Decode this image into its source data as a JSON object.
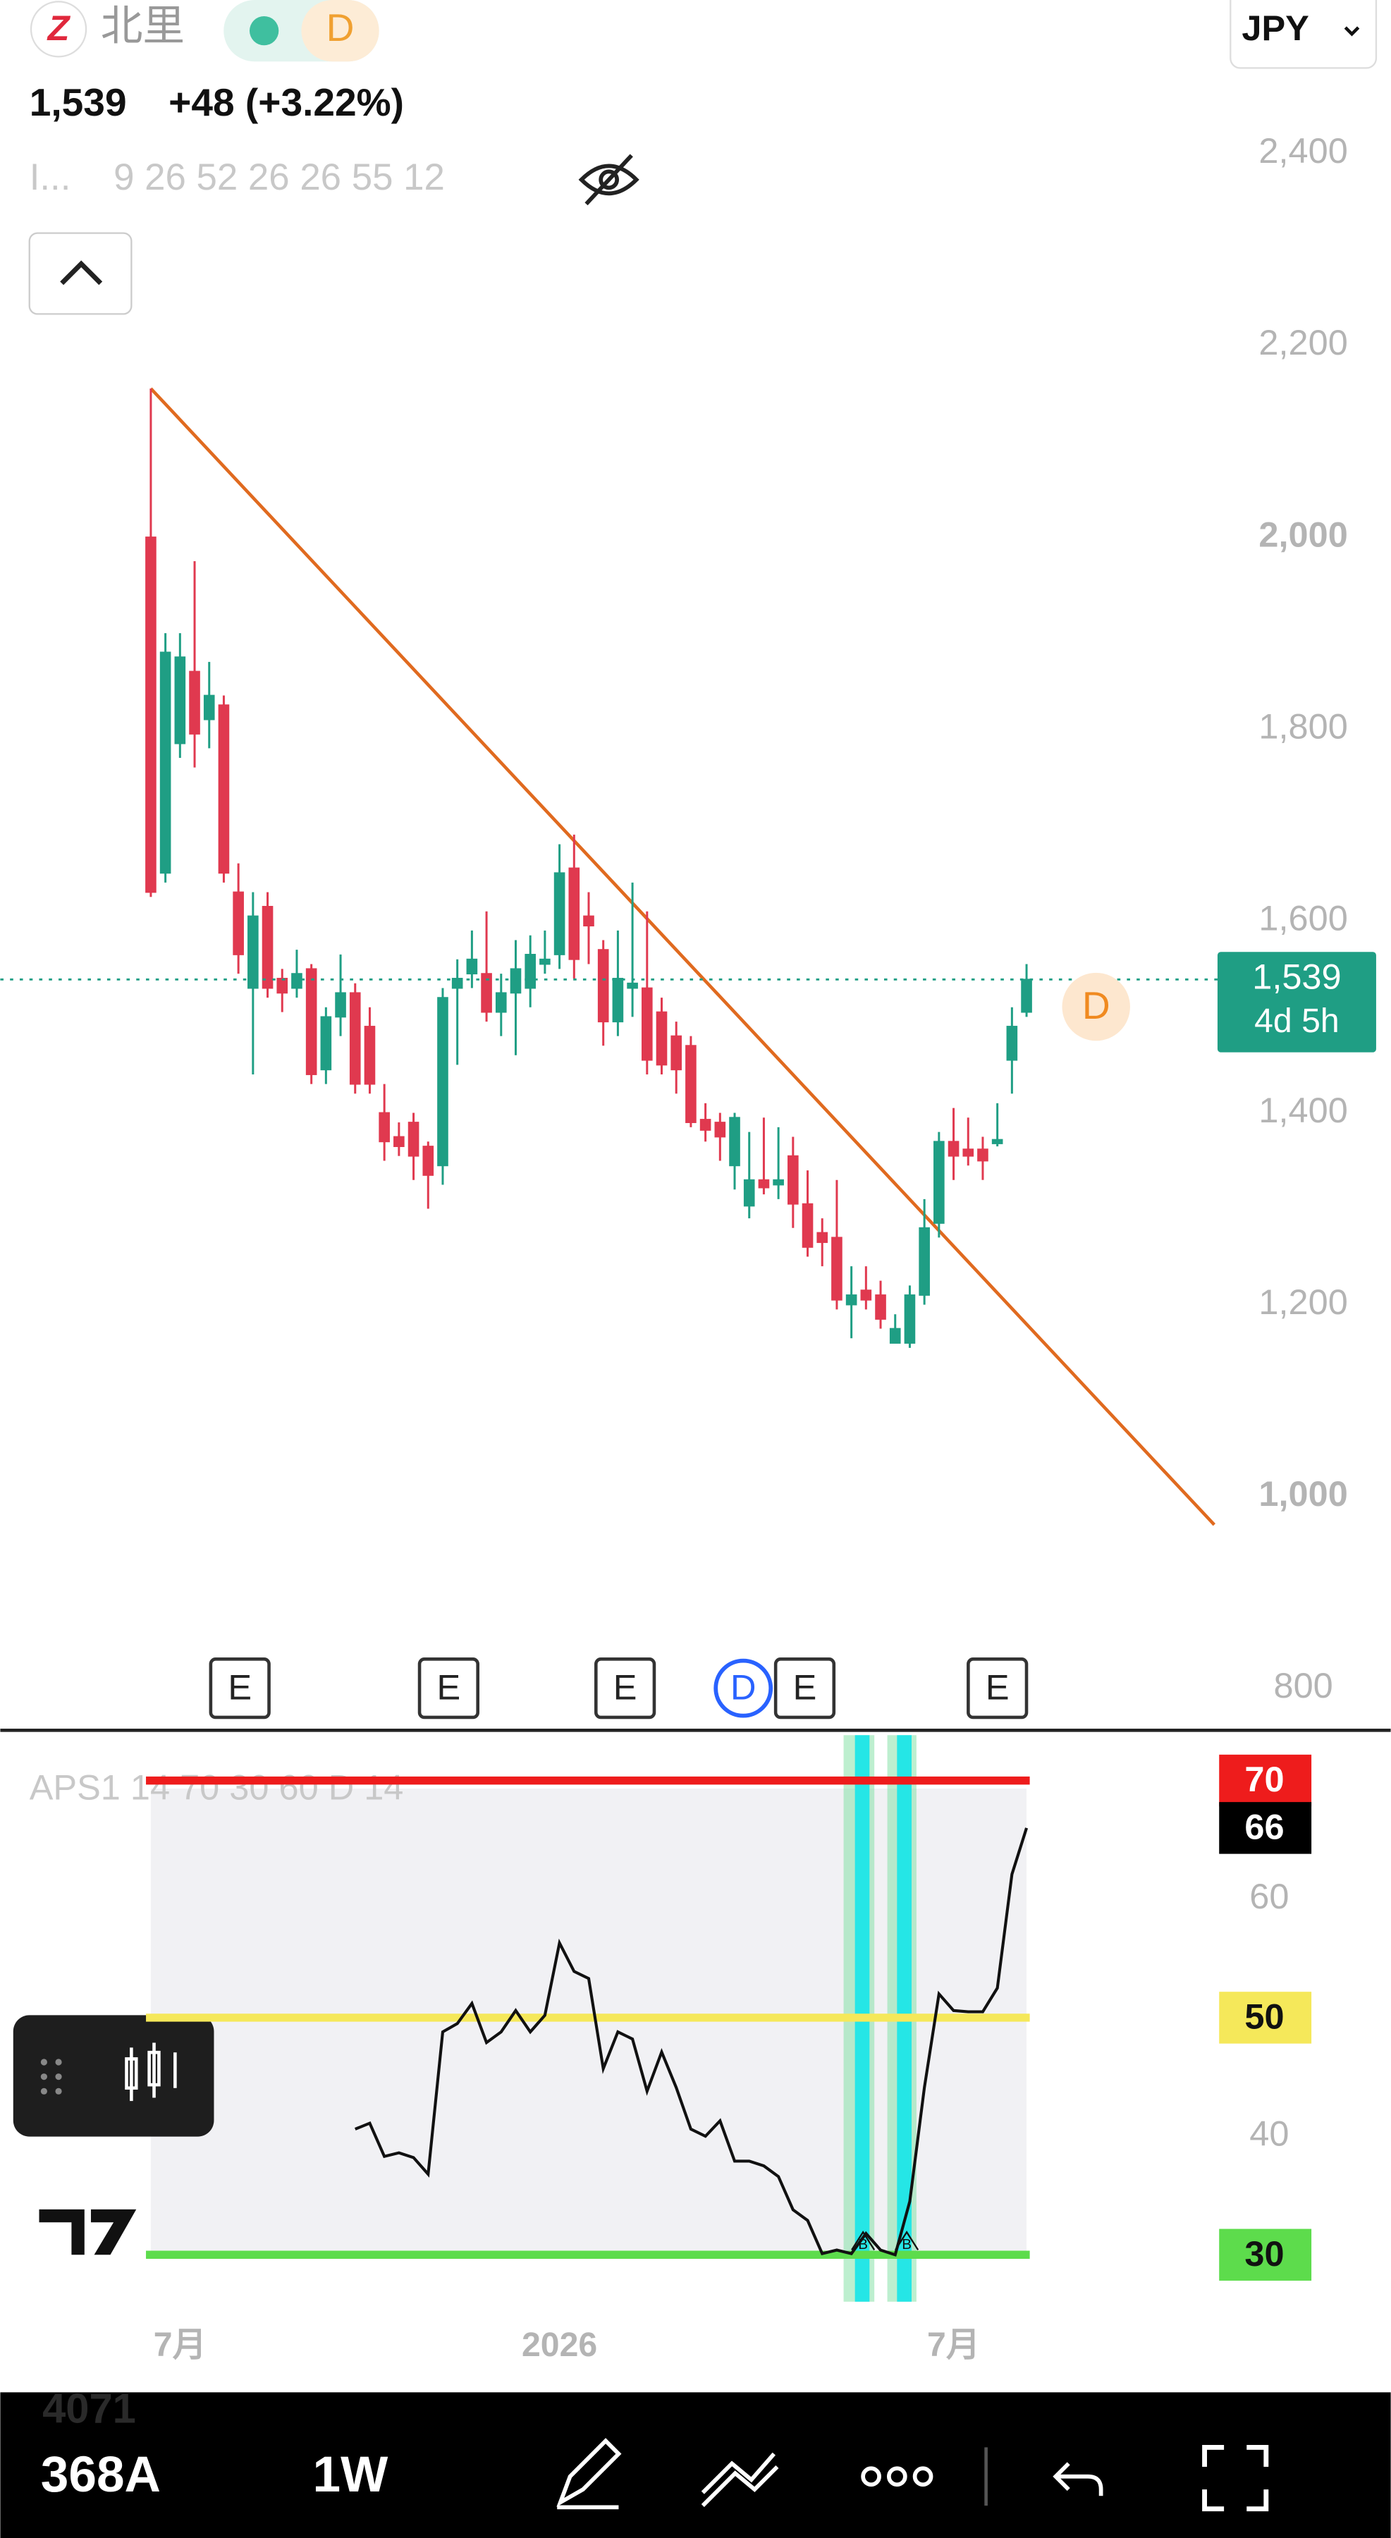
{
  "header": {
    "symbol": "北里",
    "badge": "D",
    "price": "1,539",
    "change": "+48 (+3.22%)",
    "indicator": "I...",
    "indicator_params": "9 26 52 26 26 55 12",
    "currency": "JPY"
  },
  "chart_data": [
    {
      "type": "candlestick",
      "categories": [
        null,
        null,
        "7月",
        null,
        null,
        null,
        null,
        null,
        null,
        null,
        null,
        null,
        null,
        null,
        null,
        null,
        null,
        null,
        null,
        null,
        null,
        null,
        null,
        null,
        null,
        null,
        null,
        null,
        "2026",
        null,
        null,
        null,
        null,
        null,
        null,
        null,
        null,
        null,
        null,
        null,
        null,
        null,
        null,
        null,
        null,
        null,
        null,
        null,
        null,
        null,
        null,
        null,
        null,
        null,
        null,
        "7月",
        null,
        null,
        null,
        null,
        null
      ],
      "series": [
        {
          "name": "368A",
          "open": [
            2000,
            1650,
            1785,
            1860,
            1810,
            1825,
            1630,
            1530,
            1615,
            1540,
            1530,
            1550,
            1445,
            1500,
            1525,
            1490,
            1400,
            1375,
            1390,
            1365,
            1345,
            1530,
            1545,
            1545,
            1505,
            1525,
            1530,
            1555,
            1565,
            1655,
            1605,
            1570,
            1495,
            1530,
            1530,
            1505,
            1480,
            1470,
            1393,
            1390,
            1345,
            1303,
            1330,
            1325,
            1355,
            1305,
            1275,
            1270,
            1200,
            1215,
            1210,
            1160,
            1160,
            1210,
            1285,
            1370,
            1362,
            1362,
            1368,
            1455,
            1505
          ],
          "high": [
            2155,
            1900,
            1900,
            1975,
            1870,
            1835,
            1660,
            1630,
            1630,
            1550,
            1570,
            1555,
            1510,
            1565,
            1535,
            1510,
            1430,
            1390,
            1400,
            1370,
            1530,
            1560,
            1590,
            1610,
            1545,
            1580,
            1585,
            1590,
            1680,
            1690,
            1630,
            1580,
            1590,
            1640,
            1610,
            1520,
            1495,
            1480,
            1410,
            1400,
            1400,
            1380,
            1395,
            1385,
            1375,
            1340,
            1290,
            1330,
            1240,
            1240,
            1225,
            1190,
            1220,
            1310,
            1380,
            1405,
            1395,
            1375,
            1410,
            1510,
            1555
          ],
          "low": [
            1625,
            1640,
            1770,
            1760,
            1780,
            1640,
            1545,
            1440,
            1520,
            1505,
            1520,
            1430,
            1430,
            1480,
            1420,
            1420,
            1350,
            1355,
            1330,
            1300,
            1325,
            1450,
            1530,
            1495,
            1480,
            1460,
            1510,
            1545,
            1550,
            1540,
            1555,
            1470,
            1480,
            1500,
            1440,
            1440,
            1420,
            1385,
            1370,
            1350,
            1320,
            1290,
            1315,
            1310,
            1280,
            1250,
            1240,
            1195,
            1165,
            1195,
            1175,
            1160,
            1155,
            1200,
            1270,
            1330,
            1345,
            1330,
            1365,
            1420,
            1500
          ],
          "close": [
            1630,
            1880,
            1875,
            1795,
            1835,
            1650,
            1565,
            1605,
            1530,
            1525,
            1545,
            1440,
            1500,
            1525,
            1430,
            1430,
            1370,
            1365,
            1355,
            1335,
            1520,
            1540,
            1560,
            1505,
            1525,
            1550,
            1565,
            1560,
            1650,
            1560,
            1595,
            1495,
            1540,
            1535,
            1455,
            1450,
            1445,
            1390,
            1382,
            1375,
            1395,
            1330,
            1322,
            1330,
            1305,
            1260,
            1265,
            1205,
            1210,
            1205,
            1185,
            1175,
            1210,
            1280,
            1370,
            1355,
            1355,
            1350,
            1372,
            1490,
            1539
          ],
          "up_color": "#1f9e84",
          "down_color": "#e0394f"
        }
      ],
      "ylim": [
        758,
        2560
      ],
      "yticks": [
        800,
        {
          "value": 1000,
          "label": "1,000"
        },
        {
          "value": 1200,
          "label": "1,200"
        },
        {
          "value": 1400,
          "label": "1,400"
        },
        {
          "value": 1600,
          "label": "1,600"
        },
        {
          "value": 1800,
          "label": "1,800"
        },
        {
          "value": 2000,
          "label": "2,000"
        },
        {
          "value": 2200,
          "label": "2,200"
        },
        {
          "value": 2400,
          "label": "2,400"
        }
      ],
      "grid": false,
      "countdown": "4d 5h",
      "annotations": [
        "D"
      ],
      "events": [
        "E",
        "E",
        "E",
        "D",
        "E",
        "E"
      ]
    },
    {
      "type": "line",
      "title": "APS1 14 70 30 60 D 14",
      "series": [
        {
          "name": "APS1",
          "color": "#111111",
          "values": [
            null,
            null,
            null,
            null,
            null,
            null,
            null,
            null,
            null,
            null,
            null,
            null,
            null,
            null,
            40.6,
            41.1,
            38.3,
            38.6,
            38.2,
            36.8,
            48.8,
            49.5,
            51.2,
            47.9,
            48.8,
            50.6,
            48.8,
            50.2,
            56.3,
            53.9,
            53.3,
            45.7,
            48.8,
            48.2,
            43.8,
            47.1,
            44.1,
            40.6,
            40.0,
            41.3,
            37.9,
            37.9,
            37.5,
            36.6,
            33.8,
            32.9,
            30.1,
            30.4,
            30.1,
            31.8,
            30.4,
            30.0,
            34.5,
            44.1,
            52.0,
            50.6,
            50.5,
            50.5,
            52.5,
            62.1,
            66
          ]
        }
      ],
      "ylim": [
        18.4,
        74.1
      ],
      "yticks": [
        40,
        60
      ],
      "levels": [
        {
          "value": 70,
          "color": "#ee1c1c"
        },
        {
          "value": 50,
          "color": "#f5e85a"
        },
        {
          "value": 30,
          "color": "#5ddc4c"
        }
      ],
      "signals": [
        "B",
        "B"
      ]
    }
  ],
  "toolbar": {
    "symbol": "368A",
    "interval": "1W",
    "ghost": "4071"
  }
}
